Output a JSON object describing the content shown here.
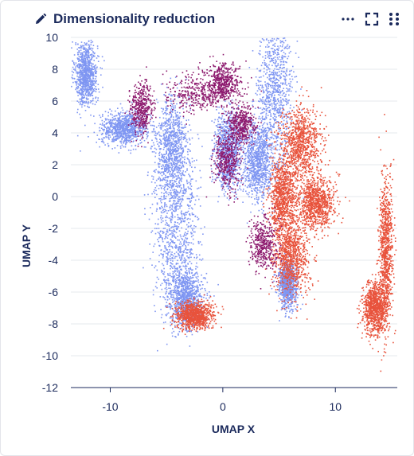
{
  "header": {
    "title": "Dimensionality reduction",
    "icons": [
      "pencil-icon",
      "more-icon",
      "expand-icon",
      "drag-grip-icon"
    ]
  },
  "chart_data": {
    "type": "scatter",
    "title": "Dimensionality reduction",
    "xlabel": "UMAP X",
    "ylabel": "UMAP Y",
    "xlim": [
      -13.5,
      15.5
    ],
    "ylim": [
      -12,
      10
    ],
    "xticks": [
      -10,
      0,
      10
    ],
    "yticks": [
      10,
      8,
      6,
      4,
      2,
      0,
      -2,
      -4,
      -6,
      -8,
      -10,
      -12
    ],
    "grid": true,
    "legend": "none",
    "colors": {
      "blue": "#7f96f2",
      "red": "#e8533c",
      "purple": "#8d1a6e"
    },
    "series": [
      {
        "color": "#7f96f2",
        "clusters": [
          {
            "cx": -12.2,
            "cy": 7.8,
            "sx": 0.5,
            "sy": 1.0
          },
          {
            "cx": -8.8,
            "cy": 4.3,
            "sx": 1.0,
            "sy": 0.5
          },
          {
            "cx": -4.6,
            "cy": 3.0,
            "sx": 0.7,
            "sy": 1.6
          },
          {
            "cx": -4.2,
            "cy": -2.0,
            "sx": 1.0,
            "sy": 2.6
          },
          {
            "cx": -3.3,
            "cy": -6.3,
            "sx": 0.8,
            "sy": 0.9
          },
          {
            "cx": 4.6,
            "cy": 6.5,
            "sx": 0.8,
            "sy": 2.5
          },
          {
            "cx": 3.0,
            "cy": 2.2,
            "sx": 0.7,
            "sy": 1.2
          },
          {
            "cx": 0.4,
            "cy": 3.0,
            "sx": 0.6,
            "sy": 1.2
          },
          {
            "cx": 5.7,
            "cy": -5.5,
            "sx": 0.4,
            "sy": 0.7
          }
        ]
      },
      {
        "color": "#e8533c",
        "clusters": [
          {
            "cx": 6.8,
            "cy": 3.3,
            "sx": 0.9,
            "sy": 1.2
          },
          {
            "cx": 8.2,
            "cy": -0.4,
            "sx": 0.8,
            "sy": 0.8
          },
          {
            "cx": 6.0,
            "cy": -3.8,
            "sx": 0.8,
            "sy": 1.2
          },
          {
            "cx": 5.3,
            "cy": 0.0,
            "sx": 0.6,
            "sy": 1.2
          },
          {
            "cx": -2.6,
            "cy": -7.4,
            "sx": 0.8,
            "sy": 0.4
          },
          {
            "cx": 13.4,
            "cy": -7.0,
            "sx": 0.5,
            "sy": 0.8
          },
          {
            "cx": 14.4,
            "cy": -3.5,
            "sx": 0.3,
            "sy": 2.4
          }
        ]
      },
      {
        "color": "#8d1a6e",
        "clusters": [
          {
            "cx": -2.0,
            "cy": 6.5,
            "sx": 1.6,
            "sy": 0.6
          },
          {
            "cx": 0.0,
            "cy": 7.2,
            "sx": 0.7,
            "sy": 0.6
          },
          {
            "cx": -7.3,
            "cy": 5.6,
            "sx": 0.5,
            "sy": 0.8
          },
          {
            "cx": 1.6,
            "cy": 4.6,
            "sx": 0.6,
            "sy": 0.6
          },
          {
            "cx": 3.6,
            "cy": -3.0,
            "sx": 0.6,
            "sy": 0.8
          },
          {
            "cx": 0.3,
            "cy": 2.2,
            "sx": 0.6,
            "sy": 0.9
          }
        ]
      }
    ]
  }
}
